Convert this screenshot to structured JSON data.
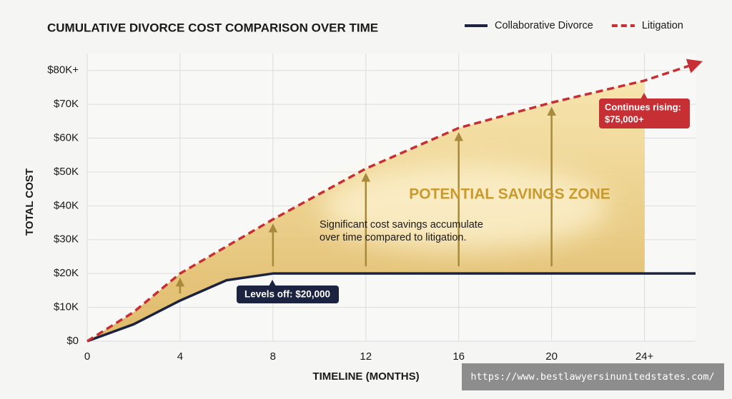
{
  "chart_data": {
    "type": "line",
    "title": "CUMULATIVE DIVORCE COST COMPARISON OVER TIME",
    "x_label": "TIMELINE (MONTHS)",
    "y_label": "TOTAL COST",
    "xlim": [
      0,
      26.2
    ],
    "ylim": [
      0,
      85000
    ],
    "xticks": [
      0,
      4,
      8,
      12,
      16,
      20,
      {
        "value": 24,
        "label": "24+"
      }
    ],
    "yticks": [
      {
        "value": 0,
        "label": "$0"
      },
      {
        "value": 10000,
        "label": "$10K"
      },
      {
        "value": 20000,
        "label": "$20K"
      },
      {
        "value": 30000,
        "label": "$30K"
      },
      {
        "value": 40000,
        "label": "$40K"
      },
      {
        "value": 50000,
        "label": "$50K"
      },
      {
        "value": 60000,
        "label": "$60K"
      },
      {
        "value": 70000,
        "label": "$70K"
      },
      {
        "value": 80000,
        "label": "$80K+"
      }
    ],
    "grid": true,
    "legend": "top-right",
    "series": [
      {
        "name": "Collaborative Divorce",
        "color": "#1c2340",
        "style": "solid",
        "x": [
          0,
          2,
          4,
          6,
          8,
          26.2
        ],
        "values": [
          0,
          5000,
          12000,
          18000,
          20000,
          20000
        ]
      },
      {
        "name": "Litigation",
        "color": "#c62f33",
        "style": "dashed",
        "x": [
          0,
          2,
          4,
          6,
          8,
          12,
          16,
          20,
          24,
          26.2
        ],
        "values": [
          0,
          8600,
          20000,
          28000,
          36000,
          51000,
          63000,
          70500,
          77000,
          82000
        ]
      }
    ],
    "annotations": {
      "zone": "POTENTIAL SAVINGS ZONE",
      "note": [
        "Significant cost savings accumulate",
        "over time compared to litigation."
      ],
      "levels_off": "Levels off: $20,000",
      "rising": [
        "Continues rising:",
        "$75,000+"
      ]
    },
    "watermark": "https://www.bestlawyersinunitedstates.com/"
  }
}
